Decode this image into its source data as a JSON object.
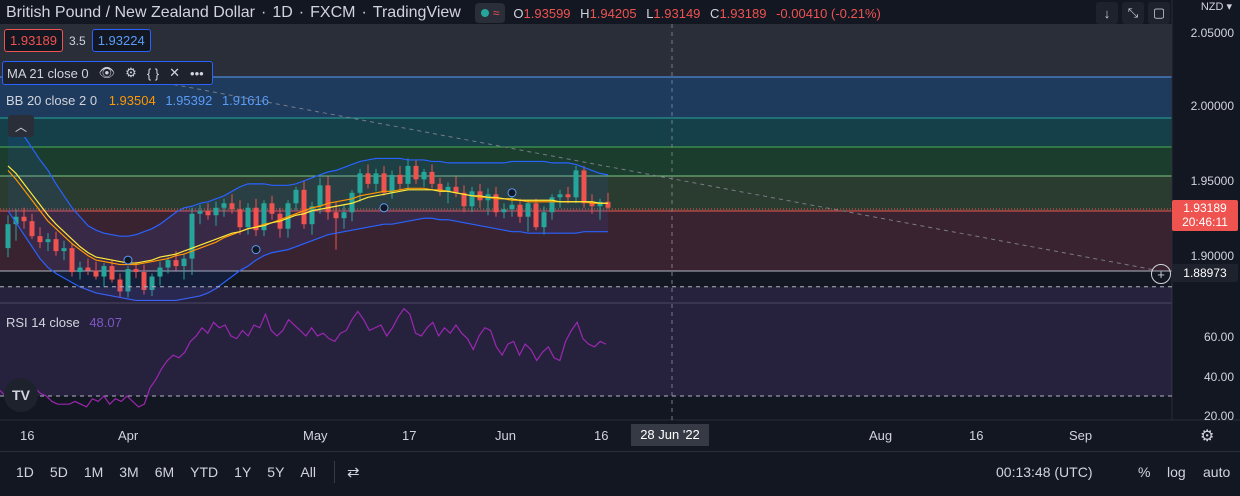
{
  "header": {
    "symbol": "British Pound / New Zealand Dollar",
    "interval": "1D",
    "exchange": "FXCM",
    "source": "TradingView",
    "ohlc": {
      "o_label": "O",
      "o": "1.93599",
      "h_label": "H",
      "h": "1.94205",
      "l_label": "L",
      "l": "1.93149",
      "c_label": "C",
      "c": "1.93189",
      "change": "-0.00410 (-0.21%)"
    }
  },
  "trade": {
    "sell": "1.93189",
    "spread": "3.5",
    "buy": "1.93224"
  },
  "indicators": {
    "ma": {
      "label": "MA 21 close 0"
    },
    "bb": {
      "label": "BB 20 close 2 0",
      "basis": "1.93504",
      "upper": "1.95392",
      "lower": "1.91616"
    },
    "rsi": {
      "label": "RSI 14 close",
      "value": "48.07"
    }
  },
  "price_axis": {
    "currency": "NZD",
    "labels": [
      "2.05000",
      "2.00000",
      "1.95000",
      "1.90000"
    ],
    "current_price": "1.93189",
    "countdown": "20:46:11",
    "line_price": "1.88973"
  },
  "rsi_axis": {
    "labels": [
      "60.00",
      "40.00",
      "20.00"
    ]
  },
  "time_axis": {
    "labels": [
      "16",
      "Apr",
      "May",
      "17",
      "Jun",
      "16",
      "Aug",
      "16",
      "Sep"
    ],
    "cursor_date": "28 Jun '22"
  },
  "bottom_bar": {
    "ranges": [
      "1D",
      "5D",
      "1M",
      "3M",
      "6M",
      "YTD",
      "1Y",
      "5Y",
      "All"
    ],
    "clock": "00:13:48 (UTC)",
    "percent": "%",
    "log": "log",
    "auto": "auto"
  },
  "colors": {
    "background": "#131722",
    "up": "#26a69a",
    "down": "#ef5350",
    "ma": "#ff9800",
    "bb_basis": "#ffeb3b",
    "bb_band": "#2962ff",
    "rsi": "#9c27b0"
  },
  "icons": {
    "eye": "eye-icon",
    "settings": "gear-icon",
    "source": "braces-icon",
    "remove": "close-icon",
    "more": "more-icon",
    "collapse": "chevron-up-icon",
    "logo": "tradingview-logo",
    "goto": "calendar-goto-icon"
  },
  "chart_data": {
    "type": "candlestick",
    "candles": [
      {
        "o": 1.905,
        "h": 1.927,
        "l": 1.899,
        "c": 1.921
      },
      {
        "o": 1.921,
        "h": 1.931,
        "l": 1.91,
        "c": 1.926
      },
      {
        "o": 1.926,
        "h": 1.932,
        "l": 1.918,
        "c": 1.923
      },
      {
        "o": 1.923,
        "h": 1.928,
        "l": 1.911,
        "c": 1.913
      },
      {
        "o": 1.913,
        "h": 1.919,
        "l": 1.905,
        "c": 1.909
      },
      {
        "o": 1.909,
        "h": 1.915,
        "l": 1.903,
        "c": 1.911
      },
      {
        "o": 1.911,
        "h": 1.916,
        "l": 1.9,
        "c": 1.903
      },
      {
        "o": 1.903,
        "h": 1.91,
        "l": 1.897,
        "c": 1.905
      },
      {
        "o": 1.905,
        "h": 1.908,
        "l": 1.886,
        "c": 1.889
      },
      {
        "o": 1.889,
        "h": 1.896,
        "l": 1.884,
        "c": 1.892
      },
      {
        "o": 1.892,
        "h": 1.898,
        "l": 1.887,
        "c": 1.89
      },
      {
        "o": 1.89,
        "h": 1.896,
        "l": 1.884,
        "c": 1.886
      },
      {
        "o": 1.886,
        "h": 1.895,
        "l": 1.879,
        "c": 1.893
      },
      {
        "o": 1.893,
        "h": 1.897,
        "l": 1.882,
        "c": 1.884
      },
      {
        "o": 1.884,
        "h": 1.888,
        "l": 1.872,
        "c": 1.876
      },
      {
        "o": 1.876,
        "h": 1.893,
        "l": 1.872,
        "c": 1.891
      },
      {
        "o": 1.891,
        "h": 1.896,
        "l": 1.885,
        "c": 1.889
      },
      {
        "o": 1.889,
        "h": 1.894,
        "l": 1.874,
        "c": 1.877
      },
      {
        "o": 1.877,
        "h": 1.888,
        "l": 1.873,
        "c": 1.886
      },
      {
        "o": 1.886,
        "h": 1.896,
        "l": 1.88,
        "c": 1.892
      },
      {
        "o": 1.892,
        "h": 1.899,
        "l": 1.888,
        "c": 1.897
      },
      {
        "o": 1.897,
        "h": 1.903,
        "l": 1.89,
        "c": 1.893
      },
      {
        "o": 1.893,
        "h": 1.901,
        "l": 1.884,
        "c": 1.898
      },
      {
        "o": 1.898,
        "h": 1.932,
        "l": 1.887,
        "c": 1.928
      },
      {
        "o": 1.928,
        "h": 1.934,
        "l": 1.921,
        "c": 1.93
      },
      {
        "o": 1.93,
        "h": 1.935,
        "l": 1.924,
        "c": 1.927
      },
      {
        "o": 1.927,
        "h": 1.936,
        "l": 1.92,
        "c": 1.932
      },
      {
        "o": 1.932,
        "h": 1.938,
        "l": 1.926,
        "c": 1.935
      },
      {
        "o": 1.935,
        "h": 1.941,
        "l": 1.928,
        "c": 1.931
      },
      {
        "o": 1.931,
        "h": 1.937,
        "l": 1.914,
        "c": 1.919
      },
      {
        "o": 1.919,
        "h": 1.935,
        "l": 1.914,
        "c": 1.932
      },
      {
        "o": 1.932,
        "h": 1.938,
        "l": 1.913,
        "c": 1.917
      },
      {
        "o": 1.917,
        "h": 1.937,
        "l": 1.913,
        "c": 1.935
      },
      {
        "o": 1.935,
        "h": 1.94,
        "l": 1.924,
        "c": 1.928
      },
      {
        "o": 1.928,
        "h": 1.932,
        "l": 1.912,
        "c": 1.918
      },
      {
        "o": 1.918,
        "h": 1.937,
        "l": 1.912,
        "c": 1.935
      },
      {
        "o": 1.935,
        "h": 1.946,
        "l": 1.93,
        "c": 1.944
      },
      {
        "o": 1.944,
        "h": 1.95,
        "l": 1.918,
        "c": 1.921
      },
      {
        "o": 1.921,
        "h": 1.936,
        "l": 1.914,
        "c": 1.933
      },
      {
        "o": 1.933,
        "h": 1.952,
        "l": 1.928,
        "c": 1.947
      },
      {
        "o": 1.947,
        "h": 1.953,
        "l": 1.924,
        "c": 1.929
      },
      {
        "o": 1.929,
        "h": 1.936,
        "l": 1.904,
        "c": 1.925
      },
      {
        "o": 1.925,
        "h": 1.934,
        "l": 1.918,
        "c": 1.929
      },
      {
        "o": 1.929,
        "h": 1.944,
        "l": 1.923,
        "c": 1.942
      },
      {
        "o": 1.942,
        "h": 1.958,
        "l": 1.936,
        "c": 1.955
      },
      {
        "o": 1.955,
        "h": 1.961,
        "l": 1.945,
        "c": 1.948
      },
      {
        "o": 1.948,
        "h": 1.958,
        "l": 1.943,
        "c": 1.955
      },
      {
        "o": 1.955,
        "h": 1.96,
        "l": 1.94,
        "c": 1.942
      },
      {
        "o": 1.942,
        "h": 1.957,
        "l": 1.938,
        "c": 1.954
      },
      {
        "o": 1.954,
        "h": 1.96,
        "l": 1.944,
        "c": 1.948
      },
      {
        "o": 1.948,
        "h": 1.965,
        "l": 1.944,
        "c": 1.96
      },
      {
        "o": 1.96,
        "h": 1.964,
        "l": 1.948,
        "c": 1.951
      },
      {
        "o": 1.951,
        "h": 1.958,
        "l": 1.946,
        "c": 1.956
      },
      {
        "o": 1.956,
        "h": 1.961,
        "l": 1.945,
        "c": 1.948
      },
      {
        "o": 1.948,
        "h": 1.952,
        "l": 1.94,
        "c": 1.943
      },
      {
        "o": 1.943,
        "h": 1.949,
        "l": 1.935,
        "c": 1.946
      },
      {
        "o": 1.946,
        "h": 1.953,
        "l": 1.939,
        "c": 1.942
      },
      {
        "o": 1.942,
        "h": 1.947,
        "l": 1.929,
        "c": 1.933
      },
      {
        "o": 1.933,
        "h": 1.946,
        "l": 1.929,
        "c": 1.943
      },
      {
        "o": 1.943,
        "h": 1.948,
        "l": 1.932,
        "c": 1.937
      },
      {
        "o": 1.937,
        "h": 1.945,
        "l": 1.927,
        "c": 1.941
      },
      {
        "o": 1.941,
        "h": 1.946,
        "l": 1.926,
        "c": 1.929
      },
      {
        "o": 1.929,
        "h": 1.935,
        "l": 1.925,
        "c": 1.931
      },
      {
        "o": 1.931,
        "h": 1.94,
        "l": 1.926,
        "c": 1.934
      },
      {
        "o": 1.934,
        "h": 1.938,
        "l": 1.922,
        "c": 1.926
      },
      {
        "o": 1.926,
        "h": 1.937,
        "l": 1.916,
        "c": 1.935
      },
      {
        "o": 1.935,
        "h": 1.938,
        "l": 1.917,
        "c": 1.919
      },
      {
        "o": 1.919,
        "h": 1.933,
        "l": 1.914,
        "c": 1.929
      },
      {
        "o": 1.929,
        "h": 1.941,
        "l": 1.924,
        "c": 1.939
      },
      {
        "o": 1.939,
        "h": 1.944,
        "l": 1.932,
        "c": 1.941
      },
      {
        "o": 1.941,
        "h": 1.946,
        "l": 1.935,
        "c": 1.939
      },
      {
        "o": 1.939,
        "h": 1.96,
        "l": 1.935,
        "c": 1.957
      },
      {
        "o": 1.957,
        "h": 1.96,
        "l": 1.932,
        "c": 1.935
      },
      {
        "o": 1.935,
        "h": 1.941,
        "l": 1.928,
        "c": 1.933
      },
      {
        "o": 1.933,
        "h": 1.938,
        "l": 1.924,
        "c": 1.936
      },
      {
        "o": 1.936,
        "h": 1.942,
        "l": 1.931,
        "c": 1.932
      }
    ],
    "ma21": [
      1.96,
      1.955,
      1.948,
      1.941,
      1.934,
      1.927,
      1.921,
      1.916,
      1.911,
      1.906,
      1.902,
      1.899,
      1.898,
      1.897,
      1.896,
      1.895,
      1.895,
      1.896,
      1.897,
      1.899,
      1.9,
      1.901,
      1.903,
      1.905,
      1.907,
      1.909,
      1.911,
      1.913,
      1.915,
      1.916,
      1.918,
      1.919,
      1.92,
      1.922,
      1.923,
      1.925,
      1.927,
      1.928,
      1.93,
      1.931,
      1.932,
      1.933,
      1.934,
      1.935,
      1.937,
      1.939,
      1.94,
      1.941,
      1.942,
      1.943,
      1.944,
      1.944,
      1.944,
      1.944,
      1.943,
      1.943,
      1.942,
      1.941,
      1.94,
      1.94,
      1.939,
      1.939,
      1.938,
      1.938,
      1.937,
      1.937,
      1.937,
      1.937,
      1.937,
      1.936,
      1.936,
      1.936,
      1.936,
      1.936,
      1.935,
      1.935
    ],
    "bb_basis": [
      1.957,
      1.951,
      1.944,
      1.937,
      1.93,
      1.923,
      1.918,
      1.913,
      1.908,
      1.904,
      1.9,
      1.897,
      1.896,
      1.895,
      1.894,
      1.894,
      1.894,
      1.895,
      1.896,
      1.897,
      1.898,
      1.9,
      1.901,
      1.903,
      1.905,
      1.907,
      1.909,
      1.912,
      1.914,
      1.916,
      1.918,
      1.919,
      1.921,
      1.922,
      1.924,
      1.926,
      1.928,
      1.93,
      1.932,
      1.933,
      1.935,
      1.936,
      1.937,
      1.938,
      1.94,
      1.941,
      1.942,
      1.943,
      1.943,
      1.944,
      1.945,
      1.945,
      1.945,
      1.944,
      1.944,
      1.943,
      1.942,
      1.941,
      1.94,
      1.939,
      1.939,
      1.938,
      1.938,
      1.937,
      1.937,
      1.936,
      1.936,
      1.936,
      1.936,
      1.936,
      1.936,
      1.936,
      1.936,
      1.935,
      1.935,
      1.935
    ],
    "bb_upper": [
      1.99,
      1.985,
      1.98,
      1.972,
      1.964,
      1.957,
      1.948,
      1.94,
      1.932,
      1.926,
      1.92,
      1.917,
      1.915,
      1.914,
      1.913,
      1.913,
      1.914,
      1.916,
      1.918,
      1.921,
      1.925,
      1.929,
      1.932,
      1.933,
      1.935,
      1.936,
      1.938,
      1.94,
      1.943,
      1.946,
      1.948,
      1.948,
      1.948,
      1.947,
      1.947,
      1.947,
      1.948,
      1.95,
      1.952,
      1.954,
      1.956,
      1.957,
      1.959,
      1.961,
      1.963,
      1.964,
      1.965,
      1.965,
      1.965,
      1.965,
      1.964,
      1.964,
      1.964,
      1.963,
      1.963,
      1.962,
      1.962,
      1.962,
      1.962,
      1.962,
      1.962,
      1.962,
      1.962,
      1.963,
      1.963,
      1.963,
      1.963,
      1.963,
      1.962,
      1.962,
      1.962,
      1.961,
      1.959,
      1.957,
      1.955,
      1.954
    ],
    "bb_lower": [
      1.93,
      1.922,
      1.914,
      1.906,
      1.898,
      1.892,
      1.888,
      1.885,
      1.882,
      1.879,
      1.877,
      1.875,
      1.874,
      1.873,
      1.872,
      1.871,
      1.87,
      1.87,
      1.87,
      1.87,
      1.87,
      1.87,
      1.871,
      1.872,
      1.873,
      1.875,
      1.878,
      1.882,
      1.886,
      1.89,
      1.893,
      1.897,
      1.9,
      1.902,
      1.903,
      1.904,
      1.906,
      1.908,
      1.91,
      1.912,
      1.914,
      1.915,
      1.916,
      1.917,
      1.918,
      1.919,
      1.92,
      1.921,
      1.921,
      1.922,
      1.923,
      1.924,
      1.925,
      1.925,
      1.924,
      1.924,
      1.923,
      1.922,
      1.921,
      1.92,
      1.919,
      1.918,
      1.917,
      1.916,
      1.916,
      1.915,
      1.915,
      1.915,
      1.915,
      1.915,
      1.915,
      1.915,
      1.916,
      1.916,
      1.916,
      1.916
    ],
    "rsi": [
      32,
      30,
      30,
      29,
      32,
      31,
      33,
      31,
      30,
      28,
      27,
      27,
      27,
      28,
      27,
      26,
      29,
      28,
      30,
      27,
      29,
      28,
      30,
      28,
      26,
      27,
      33,
      36,
      40,
      43,
      45,
      44,
      46,
      50,
      52,
      55,
      53,
      57,
      55,
      56,
      52,
      51,
      54,
      52,
      56,
      55,
      60,
      54,
      52,
      54,
      58,
      56,
      54,
      52,
      55,
      52,
      53,
      51,
      50,
      53,
      54,
      58,
      61,
      58,
      54,
      55,
      56,
      52,
      55,
      59,
      62,
      60,
      53,
      52,
      55,
      57,
      52,
      55,
      53,
      56,
      53,
      51,
      47,
      52,
      55,
      54,
      48,
      45,
      49,
      50,
      45,
      49,
      47,
      43,
      46,
      48,
      44,
      43,
      50,
      54,
      57,
      51,
      49,
      48,
      50,
      49
    ]
  }
}
